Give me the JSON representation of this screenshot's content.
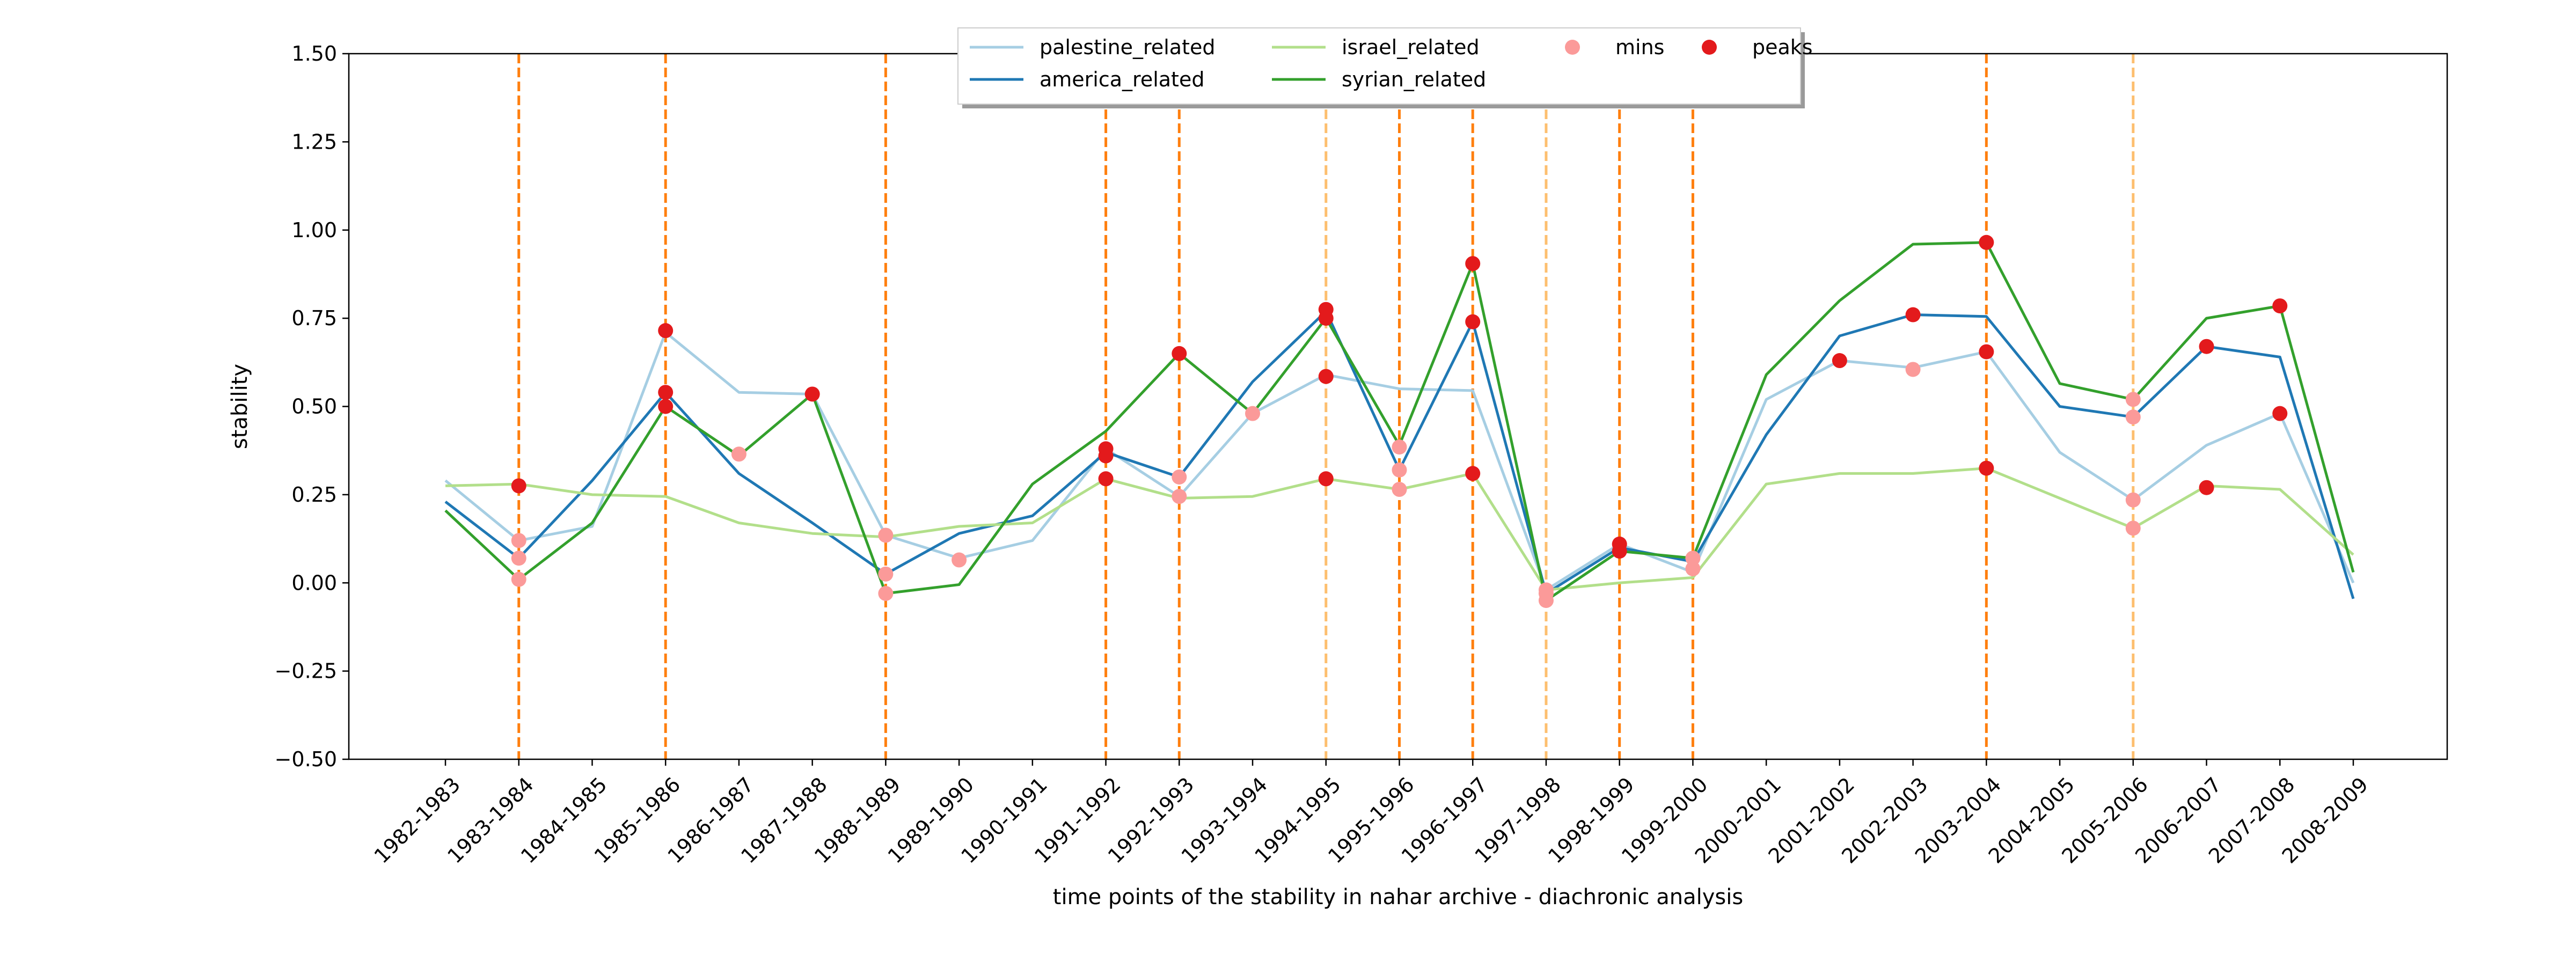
{
  "chart_data": {
    "type": "line",
    "title": "",
    "xlabel": "time points of the stability in nahar archive - diachronic analysis",
    "ylabel": "stability",
    "ylim": [
      -0.5,
      1.5
    ],
    "yticks": [
      "−0.50",
      "−0.25",
      "0.00",
      "0.25",
      "0.50",
      "0.75",
      "1.00",
      "1.25",
      "1.50"
    ],
    "categories": [
      "1982-1983",
      "1983-1984",
      "1984-1985",
      "1985-1986",
      "1986-1987",
      "1987-1988",
      "1988-1989",
      "1989-1990",
      "1990-1991",
      "1991-1992",
      "1992-1993",
      "1993-1994",
      "1994-1995",
      "1995-1996",
      "1996-1997",
      "1997-1998",
      "1998-1999",
      "1999-2000",
      "2000-2001",
      "2001-2002",
      "2002-2003",
      "2003-2004",
      "2004-2005",
      "2005-2006",
      "2006-2007",
      "2007-2008",
      "2008-2009"
    ],
    "grid": false,
    "legend_position": "top-center",
    "series": [
      {
        "name": "palestine_related",
        "color": "#a6cee3",
        "values": [
          0.29,
          0.12,
          0.16,
          0.71,
          0.54,
          0.535,
          0.135,
          0.07,
          0.12,
          0.38,
          0.245,
          0.48,
          0.59,
          0.55,
          0.545,
          -0.02,
          0.11,
          0.03,
          0.52,
          0.63,
          0.61,
          0.655,
          0.37,
          0.235,
          0.39,
          0.48,
          0.0
        ]
      },
      {
        "name": "america_related",
        "color": "#1f78b4",
        "values": [
          0.23,
          0.07,
          0.29,
          0.54,
          0.31,
          0.17,
          0.025,
          0.14,
          0.19,
          0.37,
          0.3,
          0.57,
          0.77,
          0.32,
          0.74,
          -0.03,
          0.1,
          0.06,
          0.42,
          0.7,
          0.76,
          0.755,
          0.5,
          0.47,
          0.67,
          0.64,
          -0.045
        ]
      },
      {
        "name": "israel_related",
        "color": "#b2df8a",
        "values": [
          0.275,
          0.28,
          0.25,
          0.245,
          0.17,
          0.14,
          0.13,
          0.16,
          0.17,
          0.295,
          0.24,
          0.245,
          0.295,
          0.265,
          0.31,
          -0.02,
          0.0,
          0.015,
          0.28,
          0.31,
          0.31,
          0.325,
          0.24,
          0.155,
          0.275,
          0.265,
          0.08
        ]
      },
      {
        "name": "syrian_related",
        "color": "#33a02c",
        "values": [
          0.205,
          0.01,
          0.17,
          0.5,
          0.36,
          0.535,
          -0.03,
          -0.005,
          0.28,
          0.43,
          0.65,
          0.48,
          0.75,
          0.39,
          0.905,
          -0.05,
          0.09,
          0.07,
          0.59,
          0.8,
          0.96,
          0.965,
          0.565,
          0.52,
          0.75,
          0.785,
          0.03
        ]
      }
    ],
    "vlines": [
      {
        "category": "1983-1984",
        "color": "#ff7f0e"
      },
      {
        "category": "1985-1986",
        "color": "#ff7f0e"
      },
      {
        "category": "1988-1989",
        "color": "#ff7f0e"
      },
      {
        "category": "1991-1992",
        "color": "#ff7f0e"
      },
      {
        "category": "1992-1993",
        "color": "#ff7f0e"
      },
      {
        "category": "1994-1995",
        "color": "#fdbf6f"
      },
      {
        "category": "1995-1996",
        "color": "#ff7f0e"
      },
      {
        "category": "1996-1997",
        "color": "#ff7f0e"
      },
      {
        "category": "1997-1998",
        "color": "#fdbf6f"
      },
      {
        "category": "1998-1999",
        "color": "#ff7f0e"
      },
      {
        "category": "1999-2000",
        "color": "#ff7f0e"
      },
      {
        "category": "2003-2004",
        "color": "#ff7f0e"
      },
      {
        "category": "2005-2006",
        "color": "#fdbf6f"
      }
    ],
    "mins": {
      "name": "mins",
      "color": "#fb9a99",
      "points": [
        [
          "1983-1984",
          0.12
        ],
        [
          "1983-1984",
          0.07
        ],
        [
          "1983-1984",
          0.01
        ],
        [
          "1986-1987",
          0.365
        ],
        [
          "1988-1989",
          0.135
        ],
        [
          "1988-1989",
          0.025
        ],
        [
          "1988-1989",
          -0.03
        ],
        [
          "1989-1990",
          0.065
        ],
        [
          "1992-1993",
          0.3
        ],
        [
          "1992-1993",
          0.245
        ],
        [
          "1993-1994",
          0.48
        ],
        [
          "1995-1996",
          0.385
        ],
        [
          "1995-1996",
          0.32
        ],
        [
          "1995-1996",
          0.265
        ],
        [
          "1997-1998",
          -0.02
        ],
        [
          "1997-1998",
          -0.03
        ],
        [
          "1997-1998",
          -0.05
        ],
        [
          "1999-2000",
          0.07
        ],
        [
          "1999-2000",
          0.04
        ],
        [
          "2002-2003",
          0.605
        ],
        [
          "2005-2006",
          0.52
        ],
        [
          "2005-2006",
          0.47
        ],
        [
          "2005-2006",
          0.235
        ],
        [
          "2005-2006",
          0.155
        ]
      ]
    },
    "peaks": {
      "name": "peaks",
      "color": "#e31a1c",
      "points": [
        [
          "1983-1984",
          0.275
        ],
        [
          "1985-1986",
          0.715
        ],
        [
          "1985-1986",
          0.54
        ],
        [
          "1985-1986",
          0.5
        ],
        [
          "1987-1988",
          0.535
        ],
        [
          "1991-1992",
          0.38
        ],
        [
          "1991-1992",
          0.36
        ],
        [
          "1991-1992",
          0.295
        ],
        [
          "1992-1993",
          0.65
        ],
        [
          "1994-1995",
          0.775
        ],
        [
          "1994-1995",
          0.75
        ],
        [
          "1994-1995",
          0.585
        ],
        [
          "1994-1995",
          0.295
        ],
        [
          "1996-1997",
          0.905
        ],
        [
          "1996-1997",
          0.74
        ],
        [
          "1996-1997",
          0.31
        ],
        [
          "1998-1999",
          0.11
        ],
        [
          "1998-1999",
          0.09
        ],
        [
          "2001-2002",
          0.63
        ],
        [
          "2002-2003",
          0.76
        ],
        [
          "2003-2004",
          0.965
        ],
        [
          "2003-2004",
          0.655
        ],
        [
          "2003-2004",
          0.325
        ],
        [
          "2006-2007",
          0.67
        ],
        [
          "2006-2007",
          0.27
        ],
        [
          "2007-2008",
          0.785
        ],
        [
          "2007-2008",
          0.48
        ]
      ]
    }
  }
}
